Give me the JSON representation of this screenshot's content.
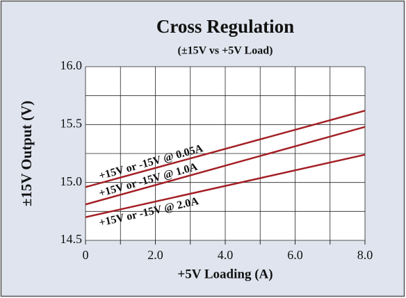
{
  "chart_data": {
    "type": "line",
    "title": "Cross Regulation",
    "subtitle": "(±15V vs +5V Load)",
    "x_label": "+5V Loading (A)",
    "y_label": "±15V Output (V)",
    "x": [
      0,
      8
    ],
    "series": [
      {
        "name": "+15V or -15V @ 0.05A",
        "color": "#a31f24",
        "values": [
          14.96,
          15.62
        ]
      },
      {
        "name": "+15V or -15V @ 1.0A",
        "color": "#a31f24",
        "values": [
          14.81,
          15.48
        ]
      },
      {
        "name": "+15V or -15V @ 2.0A",
        "color": "#a31f24",
        "values": [
          14.7,
          15.24
        ]
      }
    ],
    "xlim": [
      0,
      8
    ],
    "xticks": [
      0,
      {
        "value": 2,
        "label": "2.0"
      },
      {
        "value": 4,
        "label": "4.0"
      },
      {
        "value": 6,
        "label": "6.0"
      },
      {
        "value": 8,
        "label": "8.0"
      }
    ],
    "ylim": [
      14.5,
      16.0
    ],
    "yticks": [
      14.5,
      {
        "value": 15,
        "label": "15.0"
      },
      15.5,
      {
        "value": 16,
        "label": "16.0"
      }
    ],
    "xgrid": [
      0,
      1,
      2,
      3,
      4,
      5,
      6,
      7,
      8
    ],
    "ygrid": [
      14.5,
      14.75,
      15,
      15.25,
      15.5,
      15.75,
      16
    ],
    "grid": true
  }
}
